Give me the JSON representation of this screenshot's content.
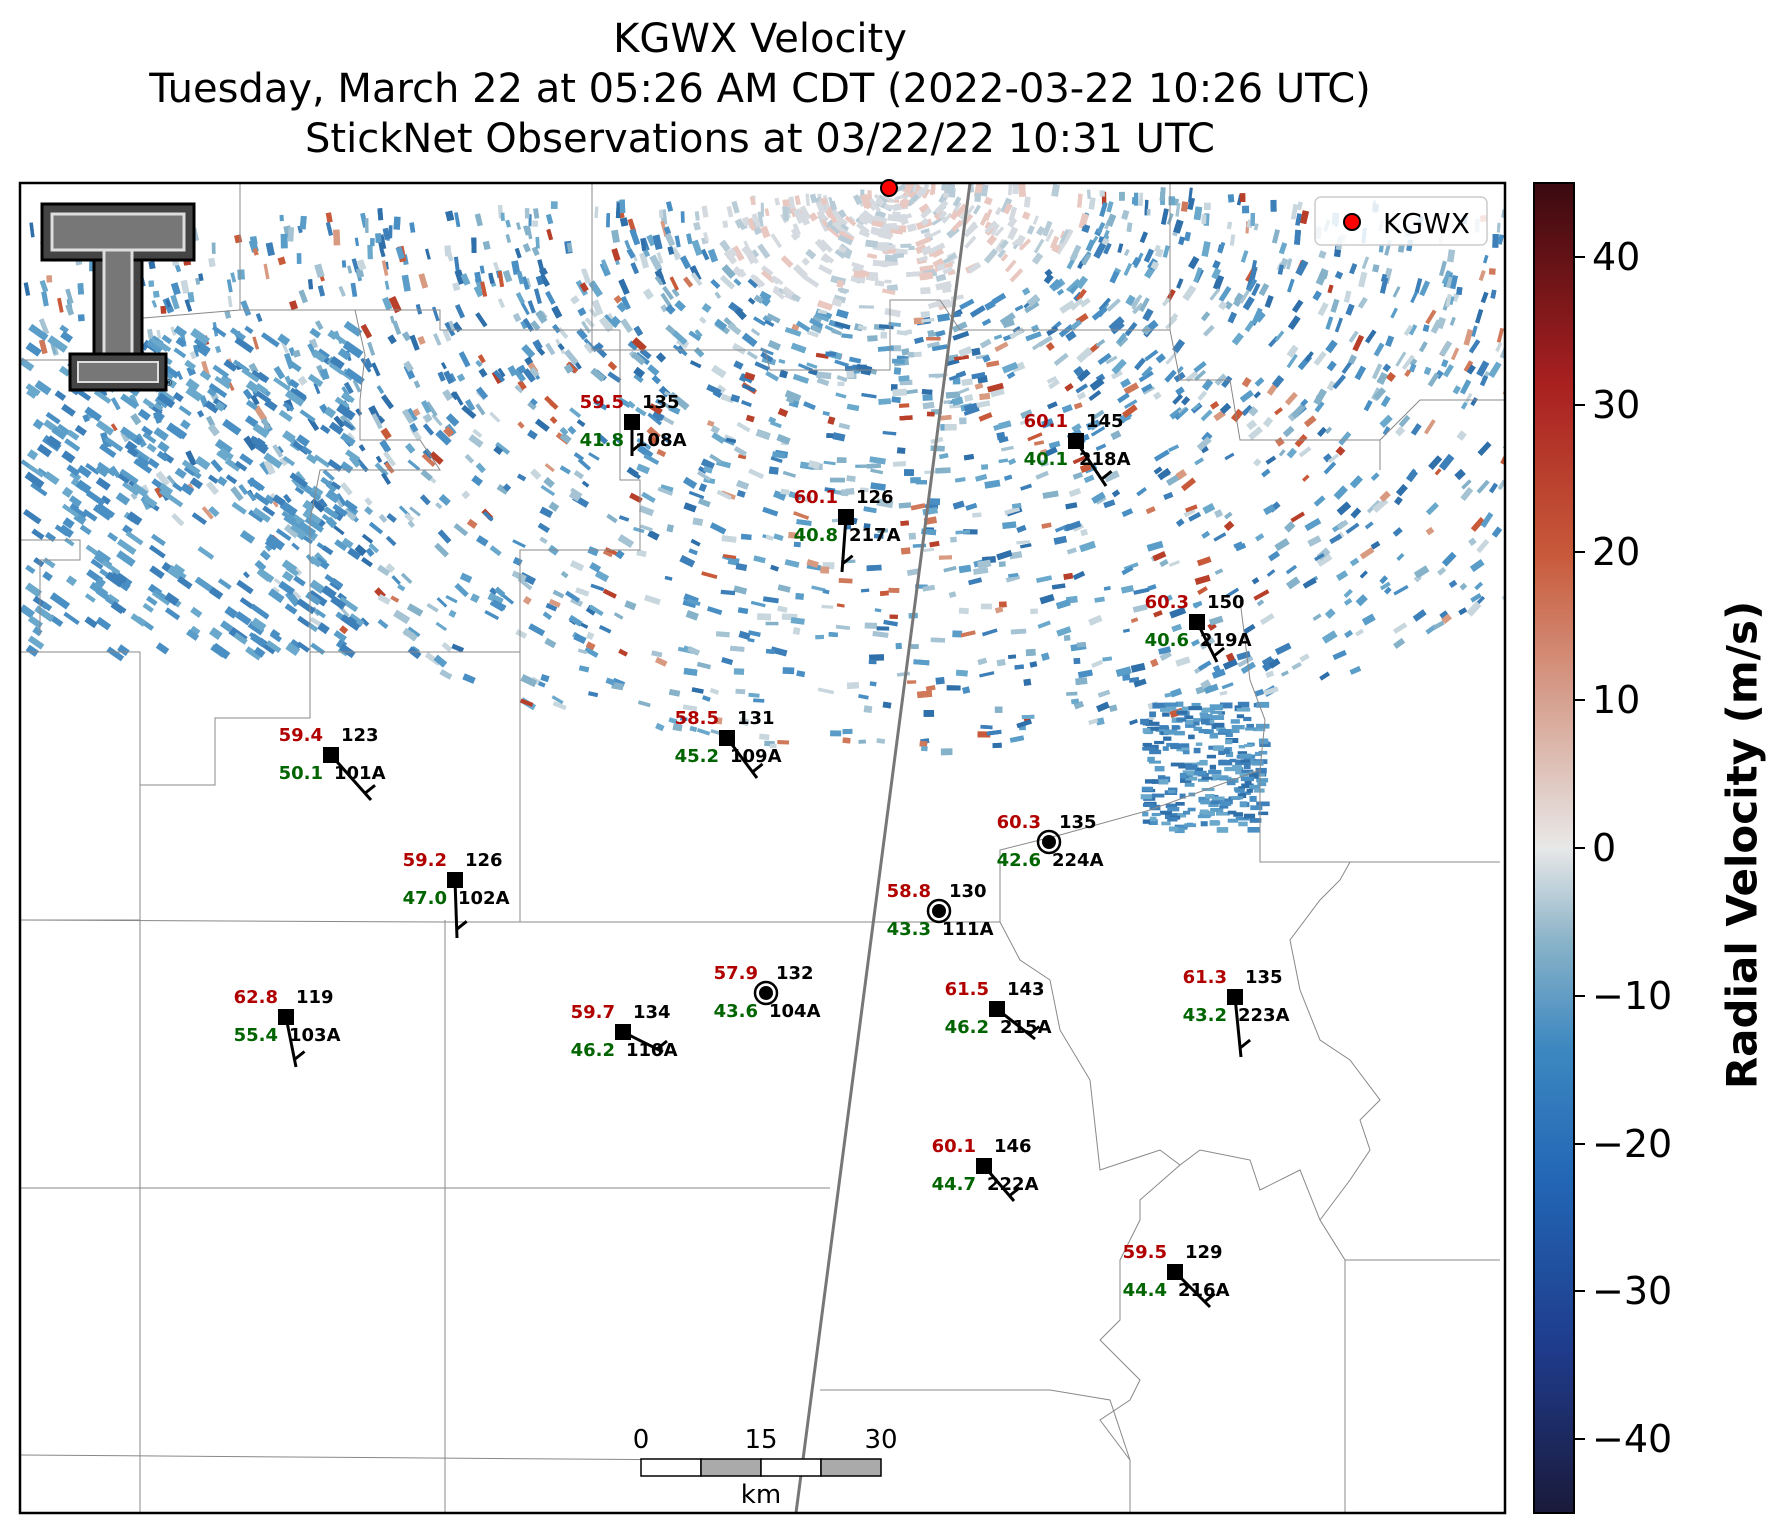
{
  "title": {
    "line1": "KGWX Velocity",
    "line2": "Tuesday, March 22 at 05:26 AM CDT (2022-03-22 10:26 UTC)",
    "line3": "StickNet Observations at 03/22/22 10:31 UTC"
  },
  "legend": {
    "radar_label": "KGWX",
    "marker_color": "#ff0000"
  },
  "colorbar": {
    "label": "Radial Velocity (m/s)",
    "range": [
      -45,
      45
    ],
    "ticks": [
      "40",
      "30",
      "20",
      "10",
      "0",
      "−10",
      "−20",
      "−30",
      "−40"
    ],
    "tick_values": [
      40,
      30,
      20,
      10,
      0,
      -10,
      -20,
      -30,
      -40
    ],
    "colors": [
      "#1a1a3a",
      "#1f3a8a",
      "#2266b5",
      "#3d88c0",
      "#8ab3c8",
      "#e8e8e8",
      "#d8a898",
      "#c85a3a",
      "#a82020",
      "#5a1018"
    ]
  },
  "scale_bar": {
    "ticks": [
      "0",
      "15",
      "30"
    ],
    "unit": "km"
  },
  "stations": [
    {
      "id": "108A",
      "temp": "59.5",
      "dew": "41.8",
      "pres": "135"
    },
    {
      "id": "218A",
      "temp": "60.1",
      "dew": "40.1",
      "pres": "145"
    },
    {
      "id": "217A",
      "temp": "60.1",
      "dew": "40.8",
      "pres": "126"
    },
    {
      "id": "219A",
      "temp": "60.3",
      "dew": "40.6",
      "pres": "150"
    },
    {
      "id": "101A",
      "temp": "59.4",
      "dew": "50.1",
      "pres": "123"
    },
    {
      "id": "109A",
      "temp": "58.5",
      "dew": "45.2",
      "pres": "131"
    },
    {
      "id": "224A",
      "temp": "60.3",
      "dew": "42.6",
      "pres": "135"
    },
    {
      "id": "102A",
      "temp": "59.2",
      "dew": "47.0",
      "pres": "126"
    },
    {
      "id": "111A",
      "temp": "58.8",
      "dew": "43.3",
      "pres": "130"
    },
    {
      "id": "103A",
      "temp": "62.8",
      "dew": "55.4",
      "pres": "119"
    },
    {
      "id": "104A",
      "temp": "57.9",
      "dew": "43.6",
      "pres": "132"
    },
    {
      "id": "110A",
      "temp": "59.7",
      "dew": "46.2",
      "pres": "134"
    },
    {
      "id": "215A",
      "temp": "61.5",
      "dew": "46.2",
      "pres": "143"
    },
    {
      "id": "223A",
      "temp": "61.3",
      "dew": "43.2",
      "pres": "135"
    },
    {
      "id": "222A",
      "temp": "60.1",
      "dew": "44.7",
      "pres": "146"
    },
    {
      "id": "216A",
      "temp": "59.5",
      "dew": "44.4",
      "pres": "129"
    }
  ]
}
